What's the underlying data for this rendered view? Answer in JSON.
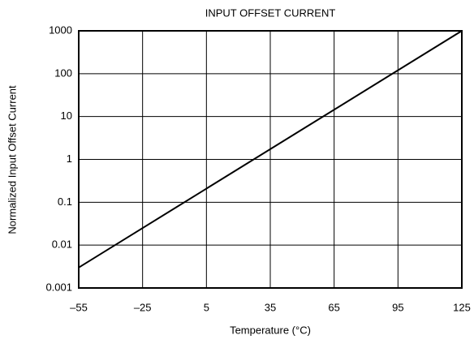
{
  "chart_data": {
    "type": "line",
    "title": "INPUT OFFSET CURRENT",
    "x_label": "Temperature (°C)",
    "y_label": "Normalized Input Offset Current",
    "x": [
      -55,
      125
    ],
    "series": [
      {
        "name": "Normalized Input Offset Current",
        "color": "#000000",
        "values": [
          0.003,
          1000
        ]
      }
    ],
    "xlim": [
      -55,
      125
    ],
    "xticks": [
      {
        "value": -55,
        "label": "–55"
      },
      {
        "value": -25,
        "label": "–25"
      },
      5,
      35,
      65,
      95,
      125
    ],
    "ylim": [
      0.001,
      1000
    ],
    "yscale": "log",
    "yticks": [
      0.001,
      0.01,
      0.1,
      1,
      10,
      100,
      1000
    ],
    "grid": true
  }
}
